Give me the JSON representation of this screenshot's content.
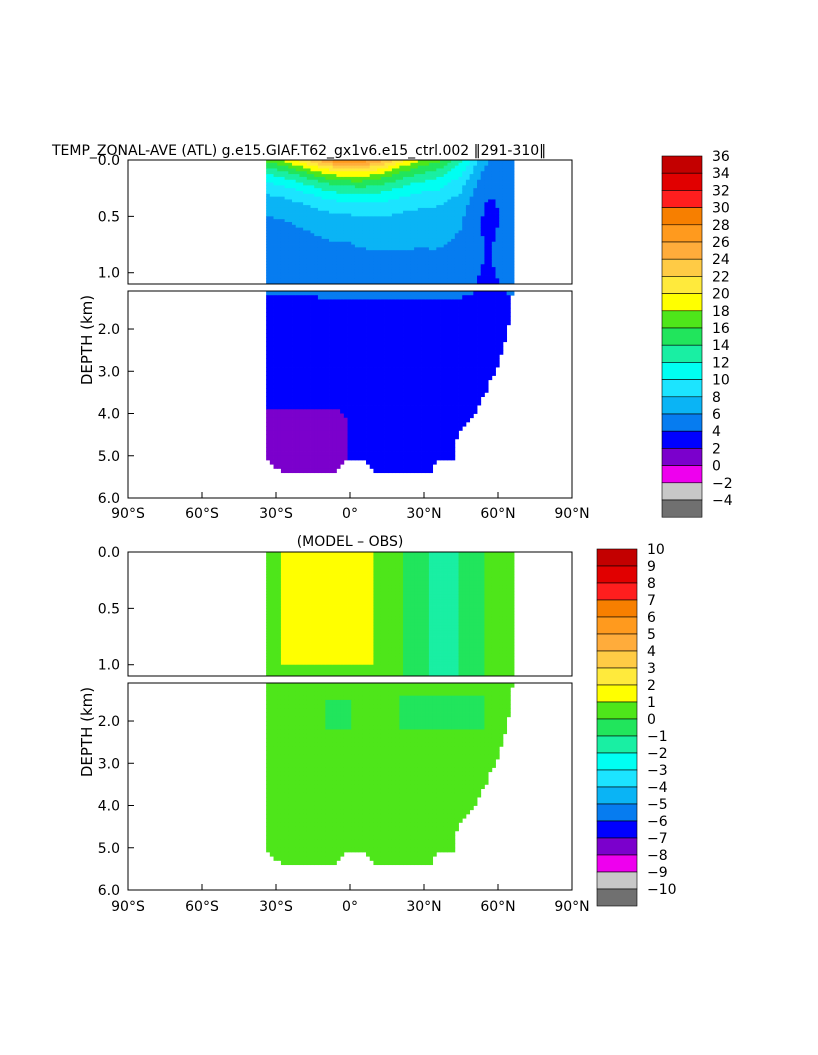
{
  "figure": {
    "title": "TEMP_ZONAL-AVE (ATL) g.e15.GIAF.T62_gx1v6.e15_ctrl.002 ‖291-310‖"
  },
  "chart_data": [
    {
      "type": "heatmap",
      "name": "temperature",
      "title": "",
      "xlabel": "",
      "ylabel": "DEPTH (km)",
      "xlim": [
        -90,
        90
      ],
      "ylim_top": [
        0.0,
        1.1
      ],
      "ylim_bottom": [
        1.1,
        6.0
      ],
      "x_ticks": [
        {
          "value": -90,
          "label": "90°S"
        },
        {
          "value": -60,
          "label": "60°S"
        },
        {
          "value": -30,
          "label": "30°S"
        },
        {
          "value": 0,
          "label": "0°"
        },
        {
          "value": 30,
          "label": "30°N"
        },
        {
          "value": 60,
          "label": "60°N"
        },
        {
          "value": 90,
          "label": "90°N"
        }
      ],
      "y_ticks_top": [
        {
          "value": 0.0,
          "label": "0.0"
        },
        {
          "value": 0.5,
          "label": "0.5"
        },
        {
          "value": 1.0,
          "label": "1.0"
        }
      ],
      "y_ticks_bottom": [
        {
          "value": 2.0,
          "label": "2.0"
        },
        {
          "value": 3.0,
          "label": "3.0"
        },
        {
          "value": 4.0,
          "label": "4.0"
        },
        {
          "value": 5.0,
          "label": "5.0"
        },
        {
          "value": 6.0,
          "label": "6.0"
        }
      ],
      "data_lat_range": [
        -34,
        67
      ],
      "colorbar": {
        "labels": [
          "36",
          "34",
          "32",
          "30",
          "28",
          "26",
          "24",
          "22",
          "20",
          "18",
          "16",
          "14",
          "12",
          "10",
          "8",
          "6",
          "4",
          "2",
          "0",
          "−2",
          "−4"
        ],
        "colors": [
          "#c30000",
          "#e10000",
          "#ff1e1e",
          "#f77f00",
          "#ff9a1e",
          "#ffac3b",
          "#ffcb45",
          "#ffea3c",
          "#ffff00",
          "#4ee61a",
          "#21e55c",
          "#19efa3",
          "#00fff2",
          "#1ce4ff",
          "#0ab4f5",
          "#067cf0",
          "#0000ff",
          "#7b00cc",
          "#ee00ee",
          "#c8c8c8",
          "#707070"
        ]
      },
      "fields": {
        "surface_max": 28,
        "south_surface": 16,
        "north_deep_surface": 6,
        "thermocline_scale_km": 0.28,
        "deep_value": 3.2,
        "abyssal_south": 1.2
      },
      "bathymetry": [
        [
          -34,
          5.05
        ],
        [
          -33,
          5.15
        ],
        [
          -28,
          5.38
        ],
        [
          -6,
          5.38
        ],
        [
          -2,
          5.1
        ],
        [
          6,
          5.1
        ],
        [
          10,
          5.38
        ],
        [
          33,
          5.38
        ],
        [
          35,
          5.15
        ],
        [
          42,
          5.05
        ],
        [
          43,
          4.6
        ],
        [
          46,
          4.3
        ],
        [
          50,
          4.1
        ],
        [
          52,
          3.8
        ],
        [
          55,
          3.5
        ],
        [
          57,
          3.2
        ],
        [
          60,
          2.9
        ],
        [
          62,
          2.5
        ],
        [
          64,
          2.0
        ],
        [
          65,
          1.6
        ],
        [
          66,
          1.1
        ],
        [
          67,
          0.9
        ],
        [
          67,
          0.0
        ]
      ]
    },
    {
      "type": "heatmap",
      "name": "difference",
      "title": "(MODEL – OBS)",
      "xlabel": "",
      "ylabel": "DEPTH (km)",
      "xlim": [
        -90,
        90
      ],
      "ylim_top": [
        0.0,
        1.1
      ],
      "ylim_bottom": [
        1.1,
        6.0
      ],
      "x_ticks": [
        {
          "value": -90,
          "label": "90°S"
        },
        {
          "value": -60,
          "label": "60°S"
        },
        {
          "value": -30,
          "label": "30°S"
        },
        {
          "value": 0,
          "label": "0°"
        },
        {
          "value": 30,
          "label": "30°N"
        },
        {
          "value": 60,
          "label": "60°N"
        },
        {
          "value": 90,
          "label": "90°N"
        }
      ],
      "y_ticks_top": [
        {
          "value": 0.0,
          "label": "0.0"
        },
        {
          "value": 0.5,
          "label": "0.5"
        },
        {
          "value": 1.0,
          "label": "1.0"
        }
      ],
      "y_ticks_bottom": [
        {
          "value": 2.0,
          "label": "2.0"
        },
        {
          "value": 3.0,
          "label": "3.0"
        },
        {
          "value": 4.0,
          "label": "4.0"
        },
        {
          "value": 5.0,
          "label": "5.0"
        },
        {
          "value": 6.0,
          "label": "6.0"
        }
      ],
      "data_lat_range": [
        -34,
        67
      ],
      "colorbar": {
        "labels": [
          "10",
          "9",
          "8",
          "7",
          "6",
          "5",
          "4",
          "3",
          "2",
          "1",
          "0",
          "−1",
          "−2",
          "−3",
          "−4",
          "−5",
          "−6",
          "−7",
          "−8",
          "−9",
          "−10"
        ],
        "colors": [
          "#c30000",
          "#e10000",
          "#ff1e1e",
          "#f77f00",
          "#ff9a1e",
          "#ffac3b",
          "#ffcb45",
          "#ffea3c",
          "#ffff00",
          "#4ee61a",
          "#21e55c",
          "#19efa3",
          "#00fff2",
          "#1ce4ff",
          "#0ab4f5",
          "#067cf0",
          "#0000ff",
          "#7b00cc",
          "#ee00ee",
          "#c8c8c8",
          "#707070"
        ]
      },
      "fields": {
        "background": 0.5,
        "upper_warm": 1.5,
        "subpolar_cool": -1.5,
        "deep_cool_patch": -0.6
      },
      "bathymetry": [
        [
          -34,
          5.05
        ],
        [
          -33,
          5.15
        ],
        [
          -28,
          5.38
        ],
        [
          -6,
          5.38
        ],
        [
          -2,
          5.1
        ],
        [
          6,
          5.1
        ],
        [
          10,
          5.38
        ],
        [
          33,
          5.38
        ],
        [
          35,
          5.15
        ],
        [
          42,
          5.05
        ],
        [
          43,
          4.6
        ],
        [
          46,
          4.3
        ],
        [
          50,
          4.1
        ],
        [
          52,
          3.8
        ],
        [
          55,
          3.5
        ],
        [
          57,
          3.2
        ],
        [
          60,
          2.9
        ],
        [
          62,
          2.5
        ],
        [
          64,
          2.0
        ],
        [
          65,
          1.6
        ],
        [
          66,
          1.1
        ],
        [
          67,
          0.9
        ],
        [
          67,
          0.0
        ]
      ]
    }
  ]
}
